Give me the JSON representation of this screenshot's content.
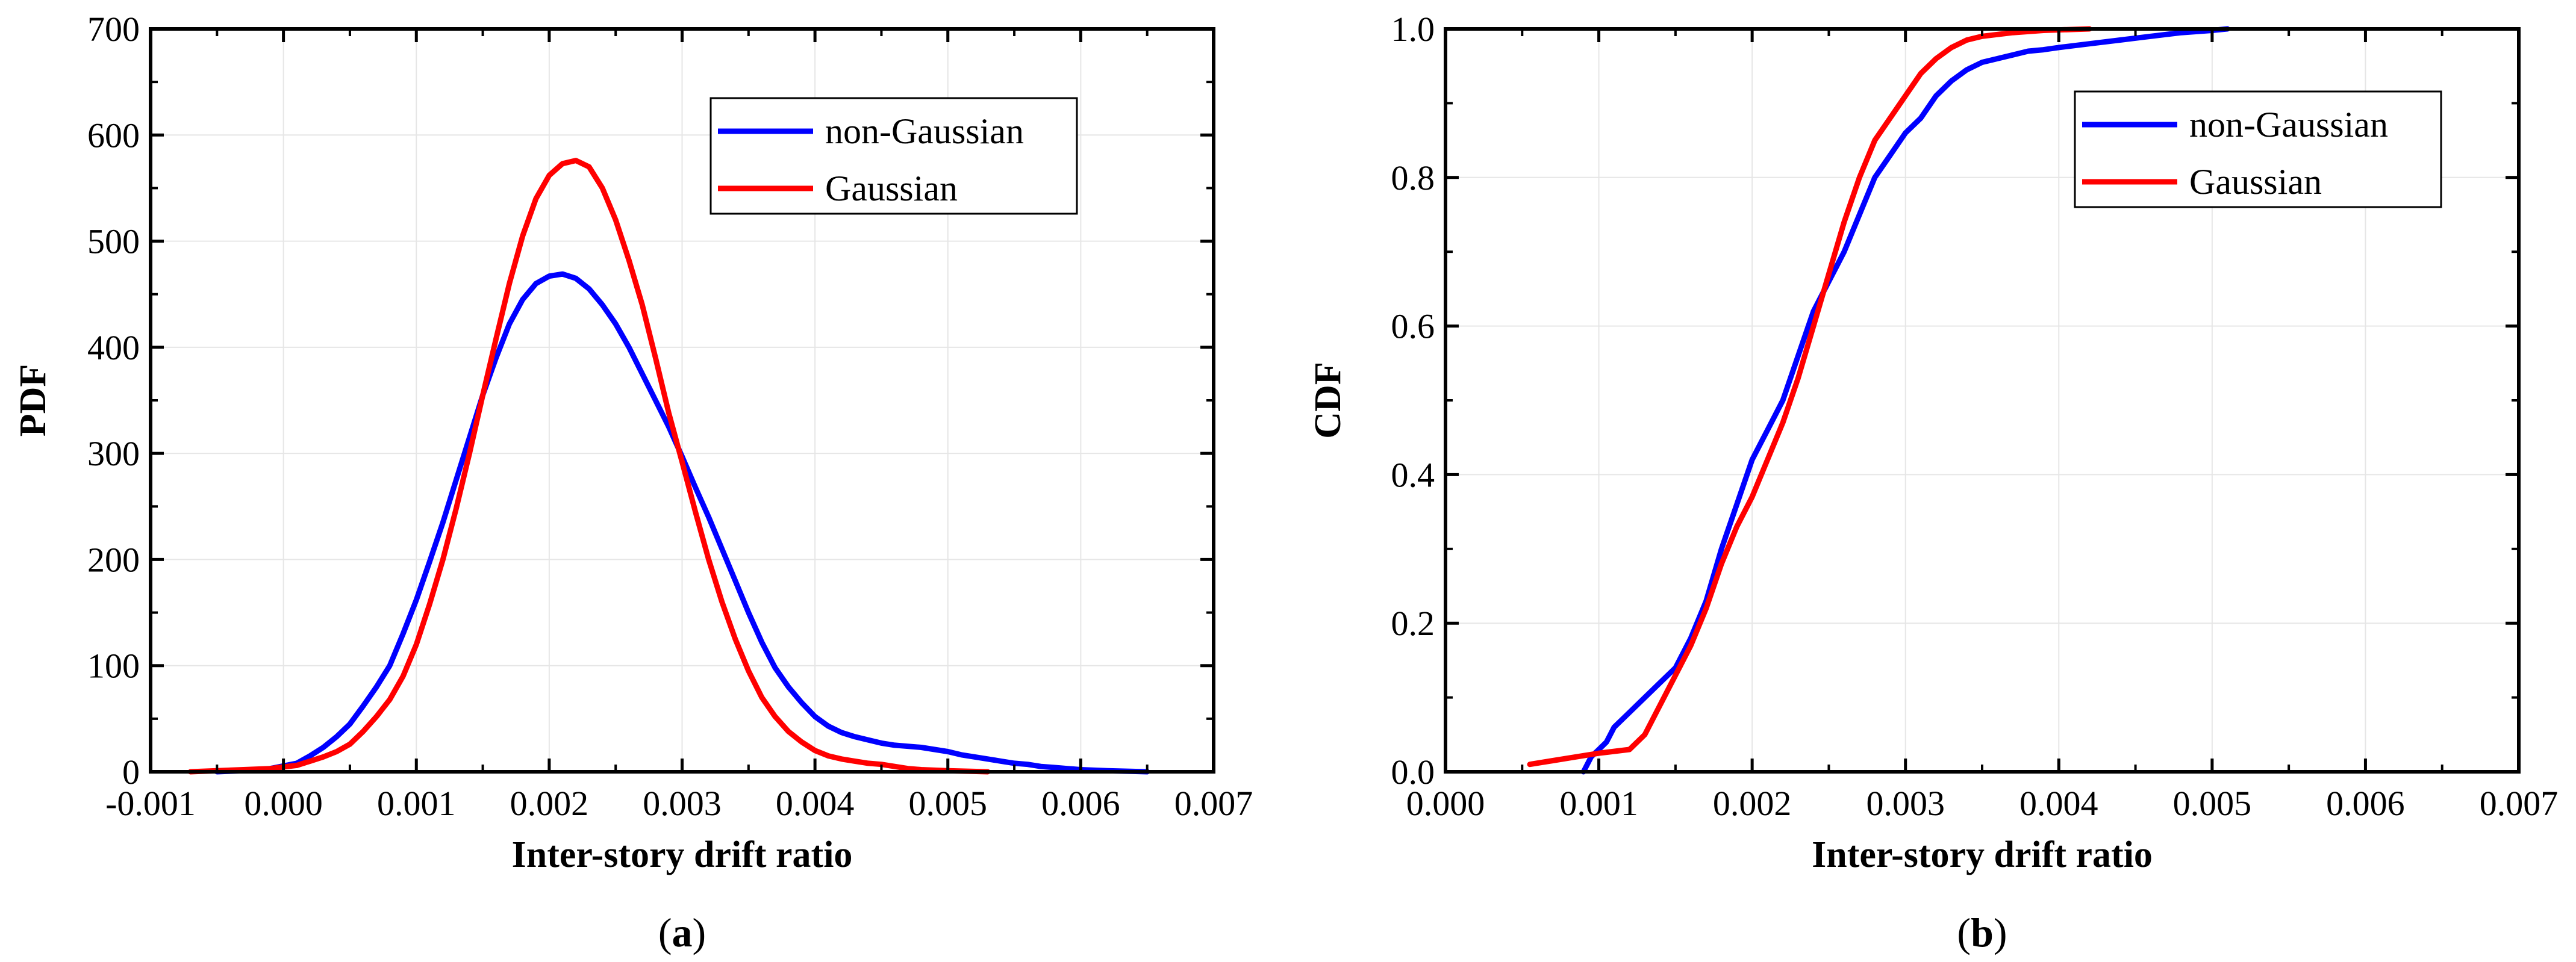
{
  "chart_data": [
    {
      "type": "line",
      "panel_label_open": "(",
      "panel_label_letter": "a",
      "panel_label_close": ")",
      "xlabel": "Inter-story drift ratio",
      "ylabel": "PDF",
      "xlim": [
        -0.001,
        0.007
      ],
      "ylim": [
        0,
        700
      ],
      "xticks": [
        "-0.001",
        "0.000",
        "0.001",
        "0.002",
        "0.003",
        "0.004",
        "0.005",
        "0.006",
        "0.007"
      ],
      "yticks": [
        "0",
        "100",
        "200",
        "300",
        "400",
        "500",
        "600",
        "700"
      ],
      "grid": true,
      "legend_position": "top-right",
      "series": [
        {
          "name": "non-Gaussian",
          "color": "#0000ff",
          "points": [
            [
              -0.0005,
              0
            ],
            [
              -0.0003,
              1
            ],
            [
              -0.0001,
              3
            ],
            [
              0.0001,
              8
            ],
            [
              0.0002,
              15
            ],
            [
              0.0003,
              23
            ],
            [
              0.0004,
              33
            ],
            [
              0.0005,
              45
            ],
            [
              0.0006,
              62
            ],
            [
              0.0007,
              80
            ],
            [
              0.0008,
              100
            ],
            [
              0.0009,
              130
            ],
            [
              0.001,
              162
            ],
            [
              0.0011,
              198
            ],
            [
              0.0012,
              235
            ],
            [
              0.0013,
              275
            ],
            [
              0.0014,
              315
            ],
            [
              0.0015,
              355
            ],
            [
              0.0016,
              390
            ],
            [
              0.0017,
              422
            ],
            [
              0.0018,
              445
            ],
            [
              0.0019,
              460
            ],
            [
              0.002,
              467
            ],
            [
              0.0021,
              469
            ],
            [
              0.0022,
              465
            ],
            [
              0.0023,
              455
            ],
            [
              0.0024,
              440
            ],
            [
              0.0025,
              422
            ],
            [
              0.0026,
              400
            ],
            [
              0.0027,
              375
            ],
            [
              0.0028,
              350
            ],
            [
              0.0029,
              325
            ],
            [
              0.003,
              297
            ],
            [
              0.0031,
              268
            ],
            [
              0.0032,
              240
            ],
            [
              0.0033,
              210
            ],
            [
              0.0034,
              180
            ],
            [
              0.0035,
              150
            ],
            [
              0.0036,
              122
            ],
            [
              0.0037,
              98
            ],
            [
              0.0038,
              80
            ],
            [
              0.0039,
              65
            ],
            [
              0.004,
              52
            ],
            [
              0.0041,
              43
            ],
            [
              0.0042,
              37
            ],
            [
              0.0043,
              33
            ],
            [
              0.0044,
              30
            ],
            [
              0.0045,
              27
            ],
            [
              0.0046,
              25
            ],
            [
              0.0047,
              24
            ],
            [
              0.0048,
              23
            ],
            [
              0.0049,
              21
            ],
            [
              0.005,
              19
            ],
            [
              0.0051,
              16
            ],
            [
              0.0052,
              14
            ],
            [
              0.0053,
              12
            ],
            [
              0.0054,
              10
            ],
            [
              0.0055,
              8
            ],
            [
              0.0056,
              7
            ],
            [
              0.0057,
              5
            ],
            [
              0.0058,
              4
            ],
            [
              0.0059,
              3
            ],
            [
              0.006,
              2
            ],
            [
              0.0062,
              1
            ],
            [
              0.0065,
              0
            ]
          ]
        },
        {
          "name": "Gaussian",
          "color": "#ff0000",
          "points": [
            [
              -0.0007,
              0
            ],
            [
              -0.0005,
              1
            ],
            [
              -0.0003,
              2
            ],
            [
              -0.0001,
              3
            ],
            [
              0.0001,
              6
            ],
            [
              0.0002,
              10
            ],
            [
              0.0003,
              14
            ],
            [
              0.0004,
              19
            ],
            [
              0.0005,
              26
            ],
            [
              0.0006,
              38
            ],
            [
              0.0007,
              52
            ],
            [
              0.0008,
              68
            ],
            [
              0.0009,
              90
            ],
            [
              0.001,
              120
            ],
            [
              0.0011,
              158
            ],
            [
              0.0012,
              200
            ],
            [
              0.0013,
              248
            ],
            [
              0.0014,
              300
            ],
            [
              0.0015,
              355
            ],
            [
              0.0016,
              408
            ],
            [
              0.0017,
              460
            ],
            [
              0.0018,
              505
            ],
            [
              0.0019,
              540
            ],
            [
              0.002,
              562
            ],
            [
              0.0021,
              573
            ],
            [
              0.0022,
              576
            ],
            [
              0.0023,
              570
            ],
            [
              0.0024,
              550
            ],
            [
              0.0025,
              520
            ],
            [
              0.0026,
              482
            ],
            [
              0.0027,
              440
            ],
            [
              0.0028,
              390
            ],
            [
              0.0029,
              338
            ],
            [
              0.003,
              292
            ],
            [
              0.0031,
              245
            ],
            [
              0.0032,
              200
            ],
            [
              0.0033,
              160
            ],
            [
              0.0034,
              125
            ],
            [
              0.0035,
              95
            ],
            [
              0.0036,
              70
            ],
            [
              0.0037,
              52
            ],
            [
              0.0038,
              38
            ],
            [
              0.0039,
              28
            ],
            [
              0.004,
              20
            ],
            [
              0.0041,
              15
            ],
            [
              0.0042,
              12
            ],
            [
              0.0043,
              10
            ],
            [
              0.0044,
              8
            ],
            [
              0.0045,
              7
            ],
            [
              0.0046,
              5
            ],
            [
              0.0047,
              3
            ],
            [
              0.0048,
              2
            ],
            [
              0.005,
              1
            ],
            [
              0.0053,
              0
            ]
          ]
        }
      ]
    },
    {
      "type": "line",
      "panel_label_open": "(",
      "panel_label_letter": "b",
      "panel_label_close": ")",
      "xlabel": "Inter-story drift ratio",
      "ylabel": "CDF",
      "xlim": [
        0.0,
        0.007
      ],
      "ylim": [
        0.0,
        1.0
      ],
      "xticks": [
        "0.000",
        "0.001",
        "0.002",
        "0.003",
        "0.004",
        "0.005",
        "0.006",
        "0.007"
      ],
      "yticks": [
        "0.0",
        "0.2",
        "0.4",
        "0.6",
        "0.8",
        "1.0"
      ],
      "grid": true,
      "legend_position": "top-right",
      "series": [
        {
          "name": "non-Gaussian",
          "color": "#0000ff",
          "points": [
            [
              0.0009,
              0
            ],
            [
              0.00095,
              0.02
            ],
            [
              0.001,
              0.03
            ],
            [
              0.00105,
              0.04
            ],
            [
              0.0011,
              0.06
            ],
            [
              0.0012,
              0.08
            ],
            [
              0.0013,
              0.1
            ],
            [
              0.0014,
              0.12
            ],
            [
              0.0015,
              0.14
            ],
            [
              0.0016,
              0.18
            ],
            [
              0.0017,
              0.23
            ],
            [
              0.0018,
              0.3
            ],
            [
              0.0019,
              0.36
            ],
            [
              0.002,
              0.42
            ],
            [
              0.0021,
              0.46
            ],
            [
              0.0022,
              0.5
            ],
            [
              0.0023,
              0.56
            ],
            [
              0.0024,
              0.62
            ],
            [
              0.0025,
              0.66
            ],
            [
              0.0026,
              0.7
            ],
            [
              0.0027,
              0.75
            ],
            [
              0.0028,
              0.8
            ],
            [
              0.0029,
              0.83
            ],
            [
              0.003,
              0.86
            ],
            [
              0.0031,
              0.88
            ],
            [
              0.0032,
              0.91
            ],
            [
              0.0033,
              0.93
            ],
            [
              0.0034,
              0.945
            ],
            [
              0.0035,
              0.955
            ],
            [
              0.0036,
              0.96
            ],
            [
              0.0037,
              0.965
            ],
            [
              0.0038,
              0.97
            ],
            [
              0.0039,
              0.972
            ],
            [
              0.004,
              0.975
            ],
            [
              0.0042,
              0.98
            ],
            [
              0.0044,
              0.985
            ],
            [
              0.0046,
              0.99
            ],
            [
              0.0048,
              0.995
            ],
            [
              0.005,
              0.998
            ],
            [
              0.0051,
              1.0
            ]
          ]
        },
        {
          "name": "Gaussian",
          "color": "#ff0000",
          "points": [
            [
              0.00055,
              0.01
            ],
            [
              0.0007,
              0.015
            ],
            [
              0.00085,
              0.02
            ],
            [
              0.001,
              0.025
            ],
            [
              0.0012,
              0.03
            ],
            [
              0.0013,
              0.05
            ],
            [
              0.0014,
              0.09
            ],
            [
              0.0015,
              0.13
            ],
            [
              0.0016,
              0.17
            ],
            [
              0.0017,
              0.22
            ],
            [
              0.0018,
              0.28
            ],
            [
              0.0019,
              0.33
            ],
            [
              0.002,
              0.37
            ],
            [
              0.0021,
              0.42
            ],
            [
              0.0022,
              0.47
            ],
            [
              0.0023,
              0.53
            ],
            [
              0.0024,
              0.6
            ],
            [
              0.0025,
              0.67
            ],
            [
              0.0026,
              0.74
            ],
            [
              0.0027,
              0.8
            ],
            [
              0.0028,
              0.85
            ],
            [
              0.0029,
              0.88
            ],
            [
              0.003,
              0.91
            ],
            [
              0.0031,
              0.94
            ],
            [
              0.0032,
              0.96
            ],
            [
              0.0033,
              0.975
            ],
            [
              0.0034,
              0.985
            ],
            [
              0.0035,
              0.99
            ],
            [
              0.0037,
              0.995
            ],
            [
              0.0039,
              0.998
            ],
            [
              0.0042,
              1.0
            ]
          ]
        }
      ]
    }
  ]
}
